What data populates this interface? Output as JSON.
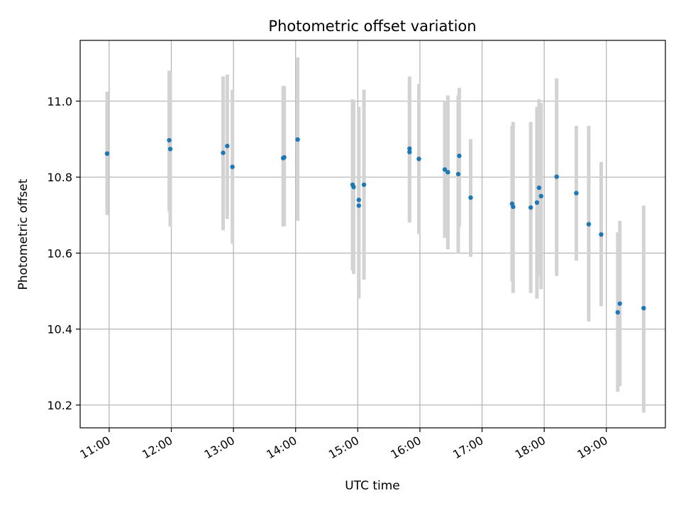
{
  "chart_data": {
    "type": "scatter",
    "title": "Photometric offset variation",
    "xlabel": "UTC time",
    "ylabel": "Photometric offset",
    "xlim": [
      "10:32",
      "19:57"
    ],
    "ylim": [
      10.14,
      11.16
    ],
    "xticks": [
      "11:00",
      "12:00",
      "13:00",
      "14:00",
      "15:00",
      "16:00",
      "17:00",
      "18:00",
      "19:00"
    ],
    "yticks": [
      10.2,
      10.4,
      10.6,
      10.8,
      11.0
    ],
    "ytick_labels": [
      "10.2",
      "10.4",
      "10.6",
      "10.8",
      "11.0"
    ],
    "grid": true,
    "colors": {
      "marker": "#1f77b4",
      "errorbar": "#d3d3d3",
      "grid": "#b0b0b0"
    },
    "series": [
      {
        "points": [
          {
            "x": "10:58",
            "y": 10.862,
            "low": 10.7,
            "high": 11.025
          },
          {
            "x": "11:58",
            "y": 10.897,
            "low": 10.71,
            "high": 11.08
          },
          {
            "x": "11:59",
            "y": 10.874,
            "low": 10.67,
            "high": 11.08
          },
          {
            "x": "12:50",
            "y": 10.864,
            "low": 10.66,
            "high": 11.065
          },
          {
            "x": "12:54",
            "y": 10.882,
            "low": 10.69,
            "high": 11.07
          },
          {
            "x": "12:59",
            "y": 10.827,
            "low": 10.625,
            "high": 11.03
          },
          {
            "x": "13:48",
            "y": 10.85,
            "low": 10.67,
            "high": 11.04
          },
          {
            "x": "13:49",
            "y": 10.852,
            "low": 10.67,
            "high": 11.04
          },
          {
            "x": "14:02",
            "y": 10.899,
            "low": 10.685,
            "high": 11.115
          },
          {
            "x": "14:55",
            "y": 10.78,
            "low": 10.555,
            "high": 11.005
          },
          {
            "x": "14:56",
            "y": 10.774,
            "low": 10.545,
            "high": 11.0
          },
          {
            "x": "15:01",
            "y": 10.74,
            "low": 10.48,
            "high": 10.985
          },
          {
            "x": "15:01",
            "y": 10.725,
            "low": 10.49,
            "high": 10.96
          },
          {
            "x": "15:06",
            "y": 10.78,
            "low": 10.53,
            "high": 11.03
          },
          {
            "x": "15:50",
            "y": 10.866,
            "low": 10.68,
            "high": 11.05
          },
          {
            "x": "15:50",
            "y": 10.875,
            "low": 10.685,
            "high": 11.065
          },
          {
            "x": "15:59",
            "y": 10.848,
            "low": 10.65,
            "high": 11.045
          },
          {
            "x": "16:24",
            "y": 10.82,
            "low": 10.64,
            "high": 11.0
          },
          {
            "x": "16:27",
            "y": 10.813,
            "low": 10.61,
            "high": 11.015
          },
          {
            "x": "16:37",
            "y": 10.808,
            "low": 10.6,
            "high": 11.015
          },
          {
            "x": "16:38",
            "y": 10.856,
            "low": 10.67,
            "high": 11.035
          },
          {
            "x": "16:49",
            "y": 10.746,
            "low": 10.59,
            "high": 10.9
          },
          {
            "x": "17:29",
            "y": 10.73,
            "low": 10.525,
            "high": 10.935
          },
          {
            "x": "17:30",
            "y": 10.722,
            "low": 10.495,
            "high": 10.945
          },
          {
            "x": "17:47",
            "y": 10.72,
            "low": 10.495,
            "high": 10.945
          },
          {
            "x": "17:53",
            "y": 10.733,
            "low": 10.48,
            "high": 10.985
          },
          {
            "x": "17:55",
            "y": 10.772,
            "low": 10.54,
            "high": 11.005
          },
          {
            "x": "17:57",
            "y": 10.75,
            "low": 10.505,
            "high": 10.995
          },
          {
            "x": "18:12",
            "y": 10.801,
            "low": 10.54,
            "high": 11.06
          },
          {
            "x": "18:31",
            "y": 10.758,
            "low": 10.58,
            "high": 10.935
          },
          {
            "x": "18:43",
            "y": 10.676,
            "low": 10.42,
            "high": 10.935
          },
          {
            "x": "18:55",
            "y": 10.649,
            "low": 10.46,
            "high": 10.84
          },
          {
            "x": "19:11",
            "y": 10.444,
            "low": 10.235,
            "high": 10.655
          },
          {
            "x": "19:13",
            "y": 10.467,
            "low": 10.25,
            "high": 10.685
          },
          {
            "x": "19:36",
            "y": 10.455,
            "low": 10.18,
            "high": 10.725
          }
        ]
      }
    ]
  }
}
